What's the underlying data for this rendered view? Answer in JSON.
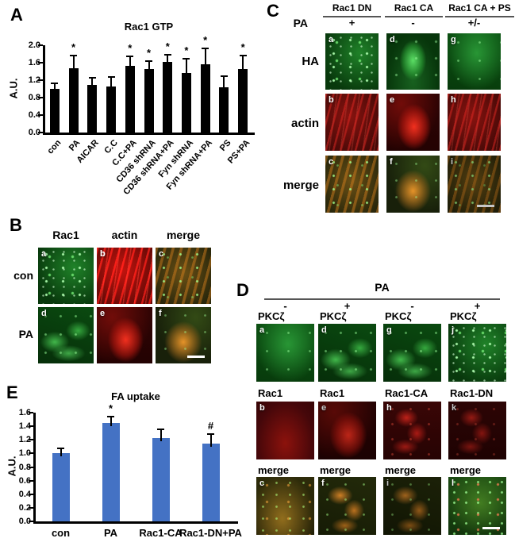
{
  "panel_a": {
    "letter": "A"
  },
  "panel_b": {
    "letter": "B",
    "col_headers": [
      "Rac1",
      "actin",
      "merge"
    ],
    "row_labels": [
      "con",
      "PA"
    ],
    "tile_letters": [
      "a",
      "b",
      "c",
      "d",
      "e",
      "f"
    ]
  },
  "panel_c": {
    "letter": "C",
    "col_headers": [
      "Rac1 DN",
      "Rac1 CA",
      "Rac1 CA + PS"
    ],
    "pa_label": "PA",
    "pa_values": [
      "+",
      "-",
      "+/-"
    ],
    "row_labels": [
      "HA",
      "actin",
      "merge"
    ],
    "tile_letters": [
      "a",
      "d",
      "g",
      "b",
      "e",
      "h",
      "c",
      "f",
      "i"
    ]
  },
  "panel_d": {
    "letter": "D",
    "header": "PA",
    "pa_values": [
      "-",
      "+",
      "-",
      "+"
    ],
    "green_labels": [
      "PKCζ",
      "PKCζ",
      "PKCζ",
      "PKCζ"
    ],
    "red_labels": [
      "Rac1",
      "Rac1",
      "Rac1-CA",
      "Rac1-DN"
    ],
    "merge_labels": [
      "merge",
      "merge",
      "merge",
      "merge"
    ],
    "tile_letters": [
      "a",
      "d",
      "g",
      "j",
      "b",
      "e",
      "h",
      "k",
      "c",
      "f",
      "i",
      "l"
    ]
  },
  "panel_e": {
    "letter": "E"
  },
  "chart_data": [
    {
      "type": "bar",
      "title": "Rac1 GTP",
      "xlabel": "",
      "ylabel": "A.U.",
      "ylim": [
        0,
        2.0
      ],
      "ytick_step": 0.4,
      "grid": false,
      "legend": null,
      "categories": [
        "con",
        "PA",
        "AICAR",
        "C.C",
        "C.C+PA",
        "CD36 shRNA",
        "CD36 shRNA+PA",
        "Fyn shRNA",
        "Fyn shRNA+PA",
        "PS",
        "PS+PA"
      ],
      "values": [
        1.0,
        1.47,
        1.1,
        1.05,
        1.52,
        1.45,
        1.62,
        1.37,
        1.57,
        1.03,
        1.45
      ],
      "errors": [
        0.13,
        0.3,
        0.15,
        0.22,
        0.22,
        0.18,
        0.16,
        0.32,
        0.36,
        0.26,
        0.31
      ],
      "sig": [
        "",
        "*",
        "",
        "",
        "*",
        "*",
        "*",
        "*",
        "*",
        "",
        "*"
      ],
      "bar_color": "#000000"
    },
    {
      "type": "bar",
      "title": "FA uptake",
      "xlabel": "",
      "ylabel": "A.U.",
      "ylim": [
        0,
        1.6
      ],
      "ytick_step": 0.2,
      "grid": false,
      "legend": null,
      "categories": [
        "con",
        "PA",
        "Rac1-CA",
        "Rac1-DN+PA"
      ],
      "values": [
        1.0,
        1.45,
        1.23,
        1.15
      ],
      "errors": [
        0.07,
        0.09,
        0.12,
        0.14
      ],
      "sig": [
        "",
        "*",
        "",
        "#"
      ],
      "bar_color": "#4472c4"
    }
  ]
}
